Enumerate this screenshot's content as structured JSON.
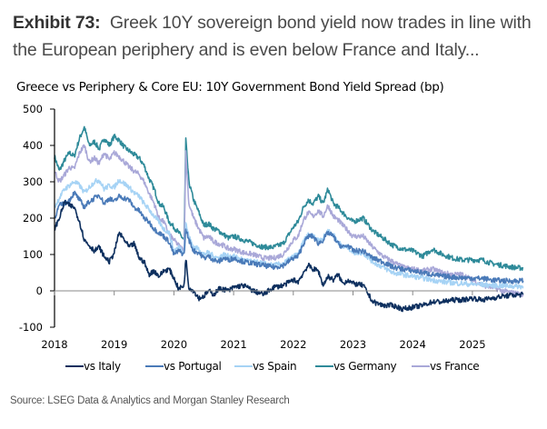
{
  "header": {
    "exhibit_label": "Exhibit 73:",
    "exhibit_title": "Greek 10Y sovereign bond yield now trades in line with the European periphery and is even below France and Italy..."
  },
  "footer": {
    "source": "Source: LSEG Data & Analytics and Morgan Stanley Research"
  },
  "chart_data": {
    "type": "line",
    "title": "Greece vs Periphery & Core EU: 10Y Government Bond Yield Spread (bp)",
    "xlabel": "",
    "ylabel": "",
    "ylim": [
      -100,
      500
    ],
    "yticks": [
      -100,
      0,
      100,
      200,
      300,
      400,
      500
    ],
    "xlim": [
      2018.0,
      2025.85
    ],
    "xticks": [
      2018,
      2019,
      2020,
      2021,
      2022,
      2023,
      2024,
      2025
    ],
    "xtick_labels": [
      "2018",
      "2019",
      "2020",
      "2021",
      "2022",
      "2023",
      "2024",
      "2025"
    ],
    "grid": false,
    "legend": "bottom",
    "x": [
      2018.0,
      2018.08,
      2018.17,
      2018.25,
      2018.33,
      2018.42,
      2018.5,
      2018.58,
      2018.67,
      2018.75,
      2018.83,
      2018.92,
      2019.0,
      2019.08,
      2019.17,
      2019.25,
      2019.33,
      2019.42,
      2019.5,
      2019.58,
      2019.67,
      2019.75,
      2019.83,
      2019.92,
      2020.0,
      2020.08,
      2020.17,
      2020.2,
      2020.25,
      2020.33,
      2020.42,
      2020.5,
      2020.58,
      2020.67,
      2020.75,
      2020.83,
      2020.92,
      2021.0,
      2021.17,
      2021.33,
      2021.5,
      2021.67,
      2021.83,
      2022.0,
      2022.08,
      2022.17,
      2022.25,
      2022.33,
      2022.42,
      2022.5,
      2022.58,
      2022.67,
      2022.75,
      2022.83,
      2022.92,
      2023.0,
      2023.17,
      2023.33,
      2023.5,
      2023.67,
      2023.83,
      2024.0,
      2024.17,
      2024.33,
      2024.5,
      2024.67,
      2024.83,
      2025.0,
      2025.17,
      2025.33,
      2025.5,
      2025.67,
      2025.85
    ],
    "series": [
      {
        "name": "vs Italy",
        "color": "#0d2f5e",
        "values": [
          170,
          200,
          245,
          235,
          230,
          190,
          140,
          125,
          110,
          120,
          95,
          80,
          105,
          160,
          140,
          120,
          130,
          90,
          80,
          45,
          55,
          40,
          55,
          60,
          35,
          5,
          15,
          90,
          10,
          0,
          -20,
          -15,
          0,
          -10,
          5,
          5,
          0,
          10,
          15,
          0,
          -10,
          10,
          15,
          30,
          25,
          50,
          70,
          60,
          55,
          15,
          40,
          30,
          45,
          20,
          30,
          20,
          15,
          -30,
          -40,
          -40,
          -50,
          -45,
          -40,
          -30,
          -30,
          -25,
          -25,
          -20,
          -25,
          -20,
          -15,
          -12,
          -10
        ]
      },
      {
        "name": "vs Portugal",
        "color": "#4a7ab8",
        "values": [
          200,
          235,
          240,
          250,
          270,
          250,
          230,
          245,
          255,
          265,
          240,
          255,
          245,
          260,
          255,
          250,
          230,
          220,
          200,
          190,
          170,
          160,
          150,
          135,
          100,
          110,
          100,
          170,
          140,
          110,
          105,
          90,
          95,
          85,
          80,
          90,
          85,
          90,
          80,
          75,
          70,
          65,
          70,
          90,
          95,
          130,
          150,
          150,
          130,
          140,
          160,
          150,
          130,
          120,
          125,
          110,
          110,
          90,
          80,
          65,
          60,
          55,
          50,
          45,
          40,
          38,
          36,
          35,
          34,
          30,
          28,
          27,
          28
        ]
      },
      {
        "name": "vs Spain",
        "color": "#a6d3f5",
        "values": [
          230,
          255,
          280,
          290,
          300,
          290,
          270,
          285,
          300,
          305,
          280,
          290,
          285,
          305,
          295,
          285,
          270,
          260,
          240,
          225,
          205,
          190,
          170,
          160,
          110,
          120,
          110,
          185,
          150,
          120,
          115,
          100,
          105,
          95,
          90,
          100,
          95,
          95,
          85,
          80,
          75,
          70,
          75,
          95,
          100,
          135,
          155,
          150,
          140,
          145,
          165,
          155,
          135,
          120,
          120,
          105,
          105,
          80,
          65,
          50,
          45,
          40,
          35,
          30,
          25,
          22,
          20,
          18,
          17,
          15,
          14,
          13,
          12
        ]
      },
      {
        "name": "vs Germany",
        "color": "#2e8a99",
        "values": [
          370,
          330,
          360,
          380,
          370,
          420,
          450,
          400,
          410,
          390,
          420,
          400,
          425,
          415,
          395,
          385,
          375,
          365,
          345,
          310,
          280,
          240,
          230,
          190,
          175,
          160,
          140,
          415,
          300,
          250,
          215,
          180,
          185,
          170,
          165,
          155,
          145,
          150,
          140,
          130,
          120,
          120,
          130,
          175,
          190,
          230,
          250,
          240,
          260,
          240,
          280,
          240,
          230,
          215,
          200,
          190,
          200,
          165,
          145,
          125,
          115,
          110,
          95,
          115,
          100,
          90,
          85,
          85,
          85,
          75,
          70,
          65,
          62
        ]
      },
      {
        "name": "vs France",
        "color": "#a9a8d8",
        "values": [
          330,
          300,
          320,
          340,
          335,
          380,
          400,
          355,
          365,
          350,
          380,
          360,
          380,
          370,
          355,
          340,
          330,
          320,
          300,
          270,
          240,
          200,
          190,
          155,
          140,
          125,
          110,
          380,
          240,
          200,
          170,
          145,
          150,
          135,
          130,
          125,
          115,
          115,
          105,
          100,
          90,
          90,
          100,
          140,
          150,
          195,
          215,
          205,
          220,
          205,
          235,
          205,
          195,
          180,
          165,
          150,
          150,
          120,
          95,
          80,
          65,
          60,
          55,
          60,
          50,
          45,
          45,
          30,
          15,
          10,
          0,
          -5,
          -10
        ]
      }
    ]
  }
}
